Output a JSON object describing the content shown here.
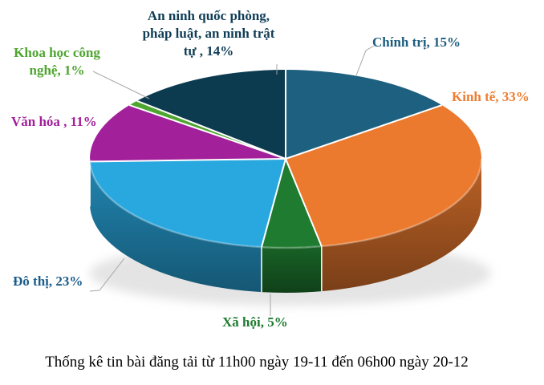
{
  "chart_data": {
    "type": "pie",
    "effect": "3d",
    "start_angle_deg": 0,
    "direction": "clockwise",
    "unit": "%",
    "leader_line_color": "#A6A6A6",
    "caption": "Thống kê tin bài đăng tải từ 11h00 ngày 19-11 đến 06h00 ngày 20-12",
    "slices": [
      {
        "name": "Chính trị",
        "value": 15,
        "label": "Chính trị, 15%",
        "color": "#1E6080",
        "label_color": "#1D5C7E"
      },
      {
        "name": "Kinh tế",
        "value": 33,
        "label": "Kinh tế, 33%",
        "color": "#EB7A2E",
        "label_color": "#ED7D31"
      },
      {
        "name": "Xã hội",
        "value": 5,
        "label": "Xã hội, 5%",
        "color": "#1E7B30",
        "label_color": "#1E7B30"
      },
      {
        "name": "Đô thị",
        "value": 23,
        "label": "Đô thị, 23%",
        "color": "#29A8DF",
        "label_color": "#1C5D8C"
      },
      {
        "name": "Văn hóa",
        "value": 11,
        "label": "Văn hóa , 11%",
        "color": "#A3209B",
        "label_color": "#A21F9B"
      },
      {
        "name": "Khoa học công nghệ",
        "value": 1,
        "label": "Khoa học công\nnghệ, 1%",
        "color": "#4EA52F",
        "label_color": "#4EA52F"
      },
      {
        "name": "An ninh quốc phòng, pháp luật, an ninh trật tự",
        "value": 14,
        "label": "An ninh quốc phòng,\npháp luật, an ninh trật\ntự , 14%",
        "color": "#0C3A4F",
        "label_color": "#103D56"
      }
    ]
  }
}
